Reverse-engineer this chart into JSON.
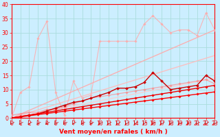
{
  "title": "",
  "xlabel": "Vent moyen/en rafales ( km/h )",
  "background_color": "#cceeff",
  "grid_color": "#aadddd",
  "xlim": [
    0,
    23
  ],
  "ylim": [
    0,
    40
  ],
  "xticks": [
    0,
    1,
    2,
    3,
    4,
    5,
    6,
    7,
    8,
    9,
    10,
    11,
    12,
    13,
    14,
    15,
    16,
    17,
    18,
    19,
    20,
    21,
    22,
    23
  ],
  "yticks": [
    0,
    5,
    10,
    15,
    20,
    25,
    30,
    35,
    40
  ],
  "series": [
    {
      "x": [
        0,
        1,
        2,
        3,
        4,
        5,
        6,
        7,
        8,
        9,
        10,
        11,
        12,
        13,
        14,
        15,
        16,
        17,
        18,
        19,
        20,
        21,
        22,
        23
      ],
      "y": [
        0,
        0.4,
        0.8,
        1.2,
        1.6,
        2.0,
        2.4,
        2.8,
        3.2,
        3.6,
        4.0,
        4.4,
        4.8,
        5.2,
        5.6,
        6.0,
        6.4,
        6.8,
        7.2,
        7.6,
        8.0,
        8.4,
        8.8,
        9.2
      ],
      "color": "#ff0000",
      "linewidth": 1.0,
      "marker": "D",
      "markersize": 1.8,
      "alpha": 1.0,
      "zorder": 5
    },
    {
      "x": [
        0,
        1,
        2,
        3,
        4,
        5,
        6,
        7,
        8,
        9,
        10,
        11,
        12,
        13,
        14,
        15,
        16,
        17,
        18,
        19,
        20,
        21,
        22,
        23
      ],
      "y": [
        0,
        0.5,
        1.0,
        1.5,
        2.0,
        2.5,
        3.0,
        3.5,
        4.0,
        4.5,
        5.0,
        5.5,
        6.0,
        6.5,
        7.0,
        7.5,
        8.0,
        8.5,
        9.0,
        9.5,
        10.0,
        10.5,
        11.0,
        11.5
      ],
      "color": "#ee0000",
      "linewidth": 1.0,
      "marker": "D",
      "markersize": 1.8,
      "alpha": 1.0,
      "zorder": 5
    },
    {
      "x": [
        0,
        1,
        2,
        3,
        4,
        5,
        6,
        7,
        8,
        9,
        10,
        11,
        12,
        13,
        14,
        15,
        16,
        17,
        18,
        19,
        20,
        21,
        22,
        23
      ],
      "y": [
        0,
        0.5,
        1.0,
        1.5,
        2.5,
        3.5,
        4.5,
        5.5,
        6.0,
        7.0,
        8.0,
        9.0,
        10.5,
        10.5,
        11.0,
        12.5,
        16.0,
        13.0,
        10.0,
        10.5,
        11.0,
        11.5,
        15.0,
        13.0
      ],
      "color": "#cc0000",
      "linewidth": 1.0,
      "marker": "D",
      "markersize": 2.0,
      "alpha": 1.0,
      "zorder": 4
    },
    {
      "x": [
        0,
        23
      ],
      "y": [
        0,
        31
      ],
      "color": "#ffaaaa",
      "linewidth": 1.0,
      "marker": null,
      "markersize": 0,
      "alpha": 0.9,
      "zorder": 2
    },
    {
      "x": [
        0,
        23
      ],
      "y": [
        0,
        22
      ],
      "color": "#ffbbbb",
      "linewidth": 1.0,
      "marker": null,
      "markersize": 0,
      "alpha": 0.9,
      "zorder": 2
    },
    {
      "x": [
        0,
        23
      ],
      "y": [
        0,
        14
      ],
      "color": "#ffcccc",
      "linewidth": 1.0,
      "marker": null,
      "markersize": 0,
      "alpha": 0.85,
      "zorder": 2
    },
    {
      "x": [
        0,
        1,
        2,
        3,
        4,
        5,
        6,
        7,
        8,
        9,
        10,
        11,
        12,
        13,
        14,
        15,
        16,
        17,
        18,
        19,
        20,
        21,
        22,
        23
      ],
      "y": [
        0,
        9,
        11,
        28,
        34,
        9,
        1,
        13,
        7,
        8,
        27,
        27,
        27,
        27,
        27,
        33,
        36,
        33,
        30,
        31,
        31,
        29,
        37,
        31
      ],
      "color": "#ffaaaa",
      "linewidth": 0.8,
      "marker": "D",
      "markersize": 1.8,
      "alpha": 0.85,
      "zorder": 3
    },
    {
      "x": [
        0,
        1,
        2,
        3,
        4,
        5,
        6,
        7,
        8,
        9,
        10,
        11,
        12,
        13,
        14,
        15,
        16,
        17,
        18,
        19,
        20,
        21,
        22,
        23
      ],
      "y": [
        1,
        1.5,
        2,
        2,
        3,
        3,
        4,
        5,
        6,
        7,
        7.5,
        8,
        8.5,
        9,
        9.5,
        10,
        10.5,
        11,
        11.5,
        12,
        12.5,
        13,
        13.5,
        12
      ],
      "color": "#ff8888",
      "linewidth": 0.9,
      "marker": "D",
      "markersize": 1.8,
      "alpha": 0.7,
      "zorder": 3
    }
  ],
  "axis_color": "#ff0000",
  "tick_color": "#ff0000",
  "label_color": "#ff0000",
  "xlabel_fontsize": 6.5,
  "tick_fontsize": 5.5
}
